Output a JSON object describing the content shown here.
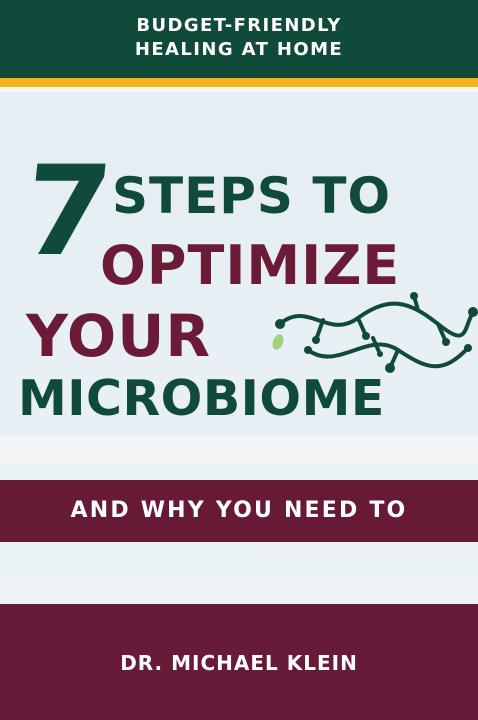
{
  "cover": {
    "tagline_line1": "BUDGET-FRIENDLY",
    "tagline_line2": "HEALING AT HOME",
    "title_number": "7",
    "title_line1": "STEPS TO",
    "title_line2": "OPTIMIZE",
    "title_line3": "YOUR",
    "title_line4": "MICROBIOME",
    "subtitle": "AND WHY YOU NEED TO",
    "author": "DR. MICHAEL KLEIN"
  },
  "colors": {
    "green": "#0f4a3a",
    "maroon": "#681b38",
    "yellow": "#f2b31b",
    "light_green": "#9fd27a"
  },
  "icons": {
    "decoration": "microbe-squiggle-icon"
  }
}
